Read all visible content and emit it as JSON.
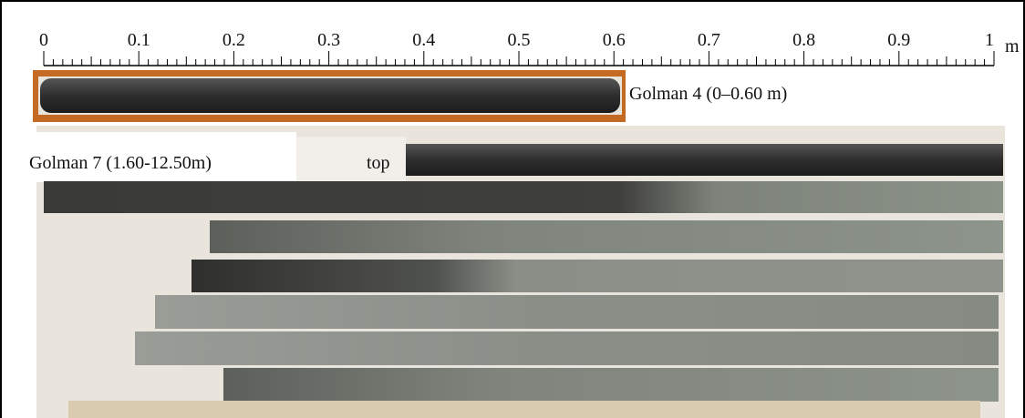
{
  "scale": {
    "ticks": [
      "0",
      "0.1",
      "0.2",
      "0.3",
      "0.4",
      "0.5",
      "0.6",
      "0.7",
      "0.8",
      "0.9",
      "1"
    ],
    "unit": "m"
  },
  "labels": {
    "core_a": "Golman 4 (0–0.60 m)",
    "core_b": "Golman 7 (1.60-12.50m)",
    "top": "top"
  }
}
